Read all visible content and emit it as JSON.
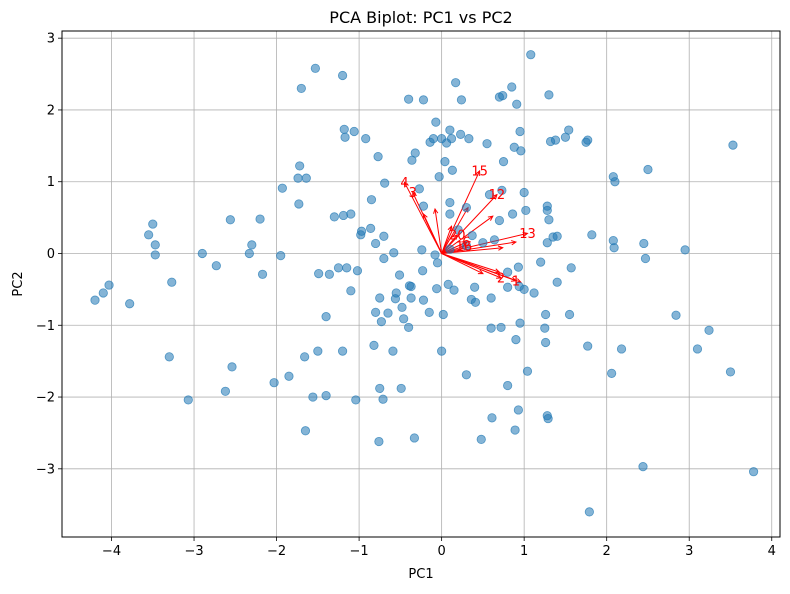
{
  "chart_data": {
    "type": "scatter",
    "title": "PCA Biplot: PC1 vs PC2",
    "xlabel": "PC1",
    "ylabel": "PC2",
    "xlim": [
      -4.6,
      4.1
    ],
    "ylim": [
      -3.95,
      3.1
    ],
    "xticks": [
      -4,
      -3,
      -2,
      -1,
      0,
      1,
      2,
      3,
      4
    ],
    "yticks": [
      -3,
      -2,
      -1,
      0,
      1,
      2,
      3
    ],
    "grid": true,
    "point_color": "#1f77b4",
    "vector_color": "#ff0000",
    "points": [
      {
        "x": -4.2,
        "y": -0.65
      },
      {
        "x": -4.1,
        "y": -0.55
      },
      {
        "x": -4.03,
        "y": -0.44
      },
      {
        "x": -3.78,
        "y": -0.7
      },
      {
        "x": -3.55,
        "y": 0.26
      },
      {
        "x": -3.5,
        "y": 0.41
      },
      {
        "x": -3.47,
        "y": 0.12
      },
      {
        "x": -3.47,
        "y": -0.02
      },
      {
        "x": -3.3,
        "y": -1.44
      },
      {
        "x": -3.27,
        "y": -0.4
      },
      {
        "x": -3.07,
        "y": -2.04
      },
      {
        "x": -2.9,
        "y": 0.0
      },
      {
        "x": -2.73,
        "y": -0.17
      },
      {
        "x": -2.62,
        "y": -1.92
      },
      {
        "x": -2.56,
        "y": 0.47
      },
      {
        "x": -2.54,
        "y": -1.58
      },
      {
        "x": -2.33,
        "y": 0.0
      },
      {
        "x": -2.3,
        "y": 0.12
      },
      {
        "x": -2.2,
        "y": 0.48
      },
      {
        "x": -2.17,
        "y": -0.29
      },
      {
        "x": -2.03,
        "y": -1.8
      },
      {
        "x": -1.95,
        "y": -0.03
      },
      {
        "x": -1.93,
        "y": 0.91
      },
      {
        "x": -1.85,
        "y": -1.71
      },
      {
        "x": -1.74,
        "y": 1.05
      },
      {
        "x": -1.73,
        "y": 0.69
      },
      {
        "x": -1.72,
        "y": 1.22
      },
      {
        "x": -1.7,
        "y": 2.3
      },
      {
        "x": -1.66,
        "y": -1.44
      },
      {
        "x": -1.65,
        "y": -2.47
      },
      {
        "x": -1.64,
        "y": 1.05
      },
      {
        "x": -1.56,
        "y": -2.0
      },
      {
        "x": -1.53,
        "y": 2.58
      },
      {
        "x": -1.5,
        "y": -1.36
      },
      {
        "x": -1.49,
        "y": -0.28
      },
      {
        "x": -1.4,
        "y": -1.98
      },
      {
        "x": -1.4,
        "y": -0.88
      },
      {
        "x": -1.36,
        "y": -0.29
      },
      {
        "x": -1.3,
        "y": 0.51
      },
      {
        "x": -1.25,
        "y": -0.2
      },
      {
        "x": -1.2,
        "y": 2.48
      },
      {
        "x": -1.2,
        "y": -1.36
      },
      {
        "x": -1.19,
        "y": 0.53
      },
      {
        "x": -1.18,
        "y": 1.73
      },
      {
        "x": -1.17,
        "y": 1.62
      },
      {
        "x": -1.15,
        "y": -0.2
      },
      {
        "x": -1.1,
        "y": 0.55
      },
      {
        "x": -1.1,
        "y": -0.52
      },
      {
        "x": -1.06,
        "y": 1.7
      },
      {
        "x": -1.04,
        "y": -2.04
      },
      {
        "x": -1.02,
        "y": -0.24
      },
      {
        "x": -0.98,
        "y": 0.26
      },
      {
        "x": -0.97,
        "y": 0.31
      },
      {
        "x": -0.92,
        "y": 1.6
      },
      {
        "x": -0.86,
        "y": 0.35
      },
      {
        "x": -0.85,
        "y": 0.75
      },
      {
        "x": -0.82,
        "y": -1.28
      },
      {
        "x": -0.8,
        "y": 0.14
      },
      {
        "x": -0.8,
        "y": -0.82
      },
      {
        "x": -0.77,
        "y": 1.35
      },
      {
        "x": -0.76,
        "y": -2.62
      },
      {
        "x": -0.75,
        "y": -1.88
      },
      {
        "x": -0.75,
        "y": -0.62
      },
      {
        "x": -0.73,
        "y": -0.95
      },
      {
        "x": -0.71,
        "y": -2.03
      },
      {
        "x": -0.7,
        "y": 0.24
      },
      {
        "x": -0.7,
        "y": -0.07
      },
      {
        "x": -0.69,
        "y": 0.98
      },
      {
        "x": -0.65,
        "y": -0.83
      },
      {
        "x": -0.59,
        "y": -1.36
      },
      {
        "x": -0.58,
        "y": 0.01
      },
      {
        "x": -0.56,
        "y": -0.63
      },
      {
        "x": -0.55,
        "y": -0.55
      },
      {
        "x": -0.51,
        "y": -0.3
      },
      {
        "x": -0.49,
        "y": -1.88
      },
      {
        "x": -0.48,
        "y": -0.75
      },
      {
        "x": -0.46,
        "y": -0.91
      },
      {
        "x": -0.4,
        "y": 2.15
      },
      {
        "x": -0.4,
        "y": -1.03
      },
      {
        "x": -0.39,
        "y": -0.45
      },
      {
        "x": -0.37,
        "y": -0.46
      },
      {
        "x": -0.37,
        "y": -0.62
      },
      {
        "x": -0.36,
        "y": 1.3
      },
      {
        "x": -0.33,
        "y": -2.57
      },
      {
        "x": -0.32,
        "y": 1.4
      },
      {
        "x": -0.27,
        "y": 0.9
      },
      {
        "x": -0.24,
        "y": 0.05
      },
      {
        "x": -0.23,
        "y": -0.24
      },
      {
        "x": -0.22,
        "y": 2.14
      },
      {
        "x": -0.22,
        "y": 0.66
      },
      {
        "x": -0.22,
        "y": -0.65
      },
      {
        "x": -0.15,
        "y": -0.82
      },
      {
        "x": -0.14,
        "y": 1.55
      },
      {
        "x": -0.1,
        "y": 1.6
      },
      {
        "x": -0.08,
        "y": -0.02
      },
      {
        "x": -0.07,
        "y": 1.83
      },
      {
        "x": -0.06,
        "y": -0.49
      },
      {
        "x": -0.05,
        "y": -0.13
      },
      {
        "x": -0.03,
        "y": 1.07
      },
      {
        "x": 0.0,
        "y": -1.36
      },
      {
        "x": 0.0,
        "y": 1.6
      },
      {
        "x": 0.02,
        "y": -0.85
      },
      {
        "x": 0.04,
        "y": 1.28
      },
      {
        "x": 0.06,
        "y": 1.54
      },
      {
        "x": 0.08,
        "y": -0.43
      },
      {
        "x": 0.1,
        "y": 1.72
      },
      {
        "x": 0.1,
        "y": 0.71
      },
      {
        "x": 0.1,
        "y": 0.55
      },
      {
        "x": 0.1,
        "y": 0.06
      },
      {
        "x": 0.12,
        "y": 1.6
      },
      {
        "x": 0.13,
        "y": 1.16
      },
      {
        "x": 0.15,
        "y": -0.51
      },
      {
        "x": 0.17,
        "y": 2.38
      },
      {
        "x": 0.2,
        "y": 0.33
      },
      {
        "x": 0.23,
        "y": 1.66
      },
      {
        "x": 0.24,
        "y": 2.14
      },
      {
        "x": 0.3,
        "y": 0.64
      },
      {
        "x": 0.3,
        "y": 0.11
      },
      {
        "x": 0.3,
        "y": -1.69
      },
      {
        "x": 0.33,
        "y": 1.6
      },
      {
        "x": 0.36,
        "y": -0.64
      },
      {
        "x": 0.37,
        "y": 0.25
      },
      {
        "x": 0.4,
        "y": -0.47
      },
      {
        "x": 0.41,
        "y": -0.68
      },
      {
        "x": 0.48,
        "y": -2.59
      },
      {
        "x": 0.5,
        "y": 0.15
      },
      {
        "x": 0.55,
        "y": 1.53
      },
      {
        "x": 0.58,
        "y": 0.82
      },
      {
        "x": 0.6,
        "y": -0.62
      },
      {
        "x": 0.6,
        "y": -1.04
      },
      {
        "x": 0.61,
        "y": -2.29
      },
      {
        "x": 0.64,
        "y": 0.19
      },
      {
        "x": 0.7,
        "y": 2.18
      },
      {
        "x": 0.7,
        "y": 0.46
      },
      {
        "x": 0.72,
        "y": -1.03
      },
      {
        "x": 0.73,
        "y": 0.88
      },
      {
        "x": 0.74,
        "y": 2.2
      },
      {
        "x": 0.75,
        "y": 1.28
      },
      {
        "x": 0.8,
        "y": -0.26
      },
      {
        "x": 0.8,
        "y": -1.84
      },
      {
        "x": 0.8,
        "y": -0.47
      },
      {
        "x": 0.85,
        "y": 2.32
      },
      {
        "x": 0.86,
        "y": 0.55
      },
      {
        "x": 0.88,
        "y": 1.48
      },
      {
        "x": 0.89,
        "y": -2.46
      },
      {
        "x": 0.9,
        "y": -1.2
      },
      {
        "x": 0.91,
        "y": 2.08
      },
      {
        "x": 0.93,
        "y": -2.18
      },
      {
        "x": 0.93,
        "y": -0.19
      },
      {
        "x": 0.94,
        "y": -0.46
      },
      {
        "x": 0.95,
        "y": -0.97
      },
      {
        "x": 0.95,
        "y": 1.7
      },
      {
        "x": 0.96,
        "y": 1.43
      },
      {
        "x": 1.0,
        "y": 0.85
      },
      {
        "x": 1.0,
        "y": -0.5
      },
      {
        "x": 1.02,
        "y": 0.6
      },
      {
        "x": 1.04,
        "y": -1.64
      },
      {
        "x": 1.08,
        "y": 2.77
      },
      {
        "x": 1.12,
        "y": -0.55
      },
      {
        "x": 1.2,
        "y": -0.12
      },
      {
        "x": 1.25,
        "y": -1.04
      },
      {
        "x": 1.26,
        "y": -1.24
      },
      {
        "x": 1.26,
        "y": -0.85
      },
      {
        "x": 1.28,
        "y": 0.66
      },
      {
        "x": 1.28,
        "y": 0.15
      },
      {
        "x": 1.28,
        "y": 0.6
      },
      {
        "x": 1.28,
        "y": -2.26
      },
      {
        "x": 1.29,
        "y": -2.3
      },
      {
        "x": 1.3,
        "y": 0.47
      },
      {
        "x": 1.3,
        "y": 2.21
      },
      {
        "x": 1.32,
        "y": 1.56
      },
      {
        "x": 1.35,
        "y": 0.23
      },
      {
        "x": 1.38,
        "y": 1.58
      },
      {
        "x": 1.4,
        "y": -0.4
      },
      {
        "x": 1.4,
        "y": 0.24
      },
      {
        "x": 1.5,
        "y": 1.62
      },
      {
        "x": 1.54,
        "y": 1.72
      },
      {
        "x": 1.55,
        "y": -0.85
      },
      {
        "x": 1.57,
        "y": -0.2
      },
      {
        "x": 1.75,
        "y": 1.55
      },
      {
        "x": 1.77,
        "y": 1.58
      },
      {
        "x": 1.77,
        "y": -1.29
      },
      {
        "x": 1.79,
        "y": -3.6
      },
      {
        "x": 1.82,
        "y": 0.26
      },
      {
        "x": 2.06,
        "y": -1.67
      },
      {
        "x": 2.08,
        "y": 1.07
      },
      {
        "x": 2.1,
        "y": 1.0
      },
      {
        "x": 2.08,
        "y": 0.18
      },
      {
        "x": 2.09,
        "y": 0.08
      },
      {
        "x": 2.18,
        "y": -1.33
      },
      {
        "x": 2.44,
        "y": -2.97
      },
      {
        "x": 2.45,
        "y": 0.14
      },
      {
        "x": 2.47,
        "y": -0.07
      },
      {
        "x": 2.5,
        "y": 1.17
      },
      {
        "x": 2.84,
        "y": -0.86
      },
      {
        "x": 2.95,
        "y": 0.05
      },
      {
        "x": 3.1,
        "y": -1.33
      },
      {
        "x": 3.24,
        "y": -1.07
      },
      {
        "x": 3.5,
        "y": -1.65
      },
      {
        "x": 3.53,
        "y": 1.51
      },
      {
        "x": 3.78,
        "y": -3.04
      }
    ],
    "vectors": [
      {
        "label": "1",
        "x": 0.9,
        "y": -0.38
      },
      {
        "label": "2",
        "x": 0.72,
        "y": -0.34
      },
      {
        "label": "4",
        "x": -0.45,
        "y": 0.99
      },
      {
        "label": "3",
        "x": -0.35,
        "y": 0.85
      },
      {
        "label": "15",
        "x": 0.46,
        "y": 1.15
      },
      {
        "label": "12",
        "x": 0.67,
        "y": 0.82
      },
      {
        "label": "13",
        "x": 1.04,
        "y": 0.28
      },
      {
        "label": "20",
        "x": 0.19,
        "y": 0.26
      },
      {
        "label": "16",
        "x": 0.27,
        "y": 0.1
      },
      {
        "label": "6",
        "x": 0.3,
        "y": 0.16
      },
      {
        "label": "",
        "x": 0.7,
        "y": -0.26
      },
      {
        "label": "",
        "x": 0.96,
        "y": -0.4
      },
      {
        "label": "",
        "x": -0.22,
        "y": 0.55
      },
      {
        "label": "",
        "x": -0.08,
        "y": 0.62
      },
      {
        "label": "",
        "x": 0.32,
        "y": 0.64
      },
      {
        "label": "",
        "x": 0.9,
        "y": 0.16
      },
      {
        "label": "",
        "x": 0.5,
        "y": -0.28
      },
      {
        "label": "",
        "x": 0.62,
        "y": 0.52
      },
      {
        "label": "",
        "x": 0.12,
        "y": 0.38
      },
      {
        "label": "",
        "x": 0.74,
        "y": 0.08
      }
    ]
  }
}
